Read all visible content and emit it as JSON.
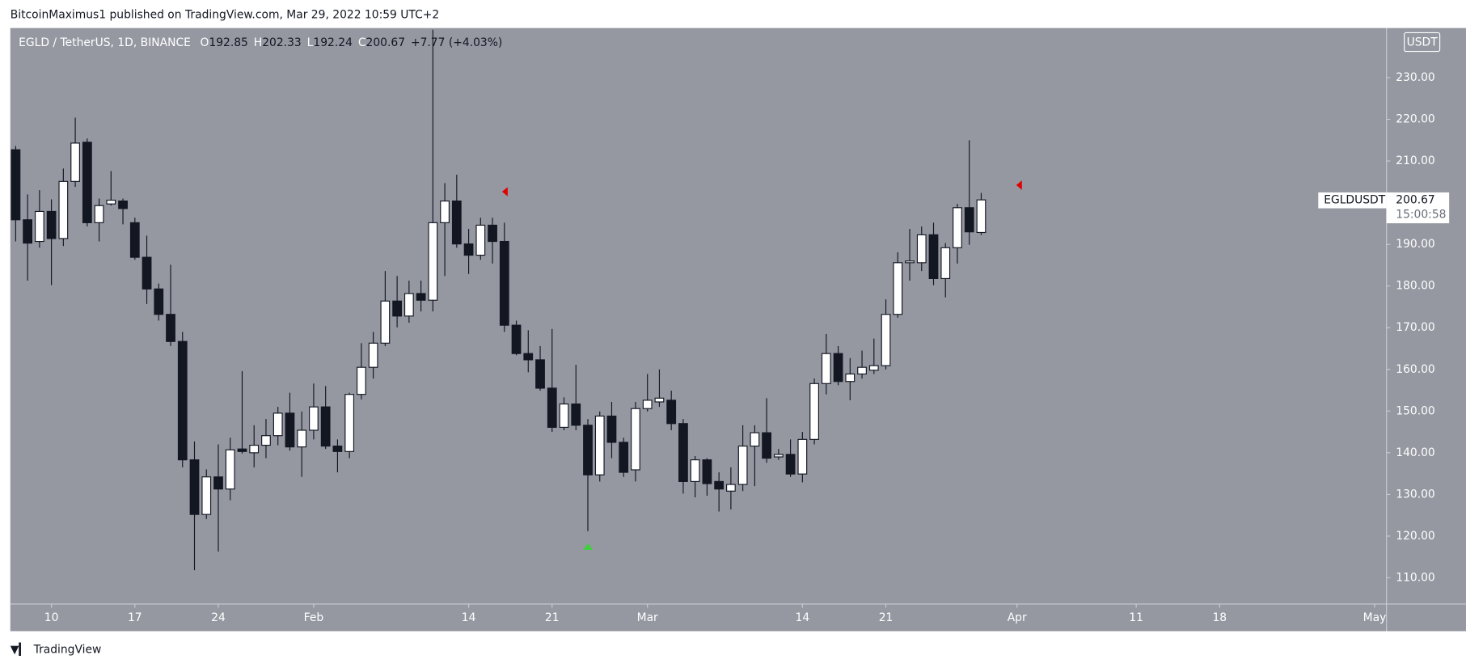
{
  "header": {
    "published": "BitcoinMaximus1 published on TradingView.com, Mar 29, 2022 10:59 UTC+2"
  },
  "footer": {
    "brand": "TradingView"
  },
  "chart_data": {
    "type": "candlestick",
    "title": "EGLD / TetherUS, 1D, BINANCE",
    "ohlc_labels": [
      "O",
      "H",
      "L",
      "C"
    ],
    "change": "+7.77 (+4.03%)",
    "unit": "USDT",
    "ticker": "EGLDUSDT",
    "countdown": "15:00:58",
    "background": "#9598a1",
    "up_color": "#ffffff",
    "down_color": "#131722",
    "wick_color": "#131722",
    "x": [
      7,
      8,
      9,
      10,
      11,
      12,
      13,
      14,
      15,
      16,
      17,
      18,
      19,
      20,
      21,
      22,
      23,
      24,
      25,
      26,
      27,
      28,
      29,
      30,
      31,
      32,
      33,
      34,
      35,
      36,
      37,
      38,
      39,
      40,
      41,
      42,
      43,
      44,
      45,
      46,
      47,
      48,
      49,
      50,
      51,
      52,
      53,
      54,
      55,
      56,
      57,
      58,
      59,
      60,
      61,
      62,
      63,
      64,
      65,
      66,
      67,
      68,
      69,
      70,
      71,
      72,
      73,
      74,
      75,
      76,
      77,
      78,
      79,
      80,
      81,
      82,
      83,
      84,
      85,
      86,
      87,
      88
    ],
    "open": [
      212.7,
      195.9,
      190.7,
      197.9,
      191.4,
      205.1,
      214.5,
      195.2,
      199.7,
      200.4,
      195.2,
      186.9,
      179.3,
      173.2,
      166.7,
      138.3,
      125.2,
      134.2,
      131.3,
      140.9,
      140.0,
      141.8,
      144.1,
      149.5,
      141.4,
      145.4,
      151.0,
      141.6,
      140.3,
      154.0,
      160.5,
      166.3,
      176.4,
      172.8,
      178.2,
      176.6,
      195.2,
      200.4,
      190.1,
      187.4,
      194.6,
      190.7,
      170.6,
      163.8,
      162.3,
      155.5,
      146.1,
      151.7,
      146.6,
      134.7,
      148.8,
      142.5,
      135.9,
      150.6,
      152.2,
      152.6,
      147.0,
      133.1,
      138.3,
      133.1,
      130.8,
      132.4,
      141.6,
      144.8,
      139.0,
      139.6,
      134.9,
      143.2,
      156.6,
      163.8,
      157.1,
      158.9,
      159.8,
      160.9,
      173.2,
      185.6,
      185.6,
      192.3,
      181.8,
      189.2,
      198.8,
      192.85
    ],
    "high": [
      213.6,
      202,
      203,
      200.8,
      208.2,
      220.4,
      215.4,
      201,
      207.6,
      201,
      196.4,
      192.1,
      180.6,
      185.1,
      169,
      142.7,
      136,
      142,
      143.6,
      159.6,
      146.6,
      148.1,
      151,
      154.4,
      149.9,
      156.6,
      156,
      143.2,
      154.4,
      166.3,
      169,
      183.6,
      182.4,
      181.3,
      181.3,
      241.5,
      204.7,
      206.7,
      193.7,
      196.4,
      196.4,
      195.2,
      171.7,
      169.4,
      165.6,
      169.7,
      153.3,
      161.1,
      148.1,
      149.9,
      152.2,
      143.6,
      152.2,
      158.9,
      160,
      154.9,
      148.1,
      139.2,
      138.7,
      135.3,
      136.5,
      146.6,
      146.6,
      153.1,
      140.9,
      143.2,
      145,
      157.8,
      168.5,
      165.6,
      162.7,
      164.5,
      167.4,
      176.8,
      188.1,
      193.7,
      194.3,
      195.2,
      190.3,
      199.7,
      215,
      202.33
    ],
    "low": [
      190.7,
      181.3,
      189.2,
      180.2,
      189.6,
      203.8,
      194.3,
      190.7,
      199.3,
      194.8,
      186.3,
      175.7,
      171.7,
      165.6,
      136.5,
      111.8,
      124.1,
      116.3,
      128.6,
      139.8,
      136.5,
      138.7,
      141.8,
      140.5,
      134.2,
      143.2,
      140.9,
      135.3,
      138.7,
      152.8,
      157.8,
      165.6,
      170.1,
      171.2,
      173.9,
      173.9,
      182.4,
      189.2,
      182.9,
      186.3,
      185.4,
      169.0,
      163.4,
      159.3,
      154.9,
      145.0,
      145.4,
      145.4,
      121.2,
      133.1,
      138.7,
      134.2,
      133.1,
      149.9,
      151,
      145.4,
      130.2,
      129.3,
      129.7,
      125.9,
      126.4,
      130.8,
      132.0,
      137.6,
      138.3,
      134.2,
      132.9,
      142.0,
      154.0,
      156.2,
      152.6,
      157.8,
      158.9,
      160.0,
      172.4,
      181.3,
      183.6,
      180.2,
      177.3,
      185.4,
      189.9,
      192.24
    ],
    "close": [
      195.9,
      190.3,
      197.9,
      191.4,
      205.1,
      214.3,
      195.2,
      199.3,
      200.6,
      198.6,
      186.9,
      179.3,
      173.2,
      166.7,
      138.3,
      125.2,
      134.2,
      131.3,
      140.7,
      140.3,
      141.8,
      144.1,
      149.5,
      141.4,
      145.4,
      151.0,
      141.6,
      140.3,
      154.0,
      160.5,
      166.3,
      176.4,
      172.8,
      178.2,
      176.6,
      195.2,
      200.4,
      190.1,
      187.4,
      194.6,
      190.7,
      170.6,
      163.8,
      162.3,
      155.5,
      146.1,
      151.7,
      146.6,
      134.7,
      148.8,
      142.5,
      135.3,
      150.6,
      152.6,
      153.1,
      147.0,
      133.1,
      138.3,
      132.6,
      131.3,
      132.4,
      141.6,
      144.8,
      138.7,
      139.6,
      134.9,
      143.2,
      156.6,
      163.8,
      157.1,
      158.9,
      160.5,
      160.9,
      173.2,
      185.6,
      186.0,
      192.3,
      181.8,
      189.2,
      198.8,
      193.0,
      200.67
    ],
    "xlim": [
      6.55,
      122
    ],
    "xticks": [
      {
        "value": 10,
        "label": "10"
      },
      {
        "value": 17,
        "label": "17"
      },
      {
        "value": 24,
        "label": "24"
      },
      {
        "value": 32,
        "label": "Feb"
      },
      {
        "value": 45,
        "label": "14"
      },
      {
        "value": 52,
        "label": "21"
      },
      {
        "value": 60,
        "label": "Mar"
      },
      {
        "value": 73,
        "label": "14"
      },
      {
        "value": 80,
        "label": "21"
      },
      {
        "value": 91,
        "label": "Apr"
      },
      {
        "value": 101,
        "label": "11"
      },
      {
        "value": 108,
        "label": "18"
      },
      {
        "value": 121,
        "label": "May"
      }
    ],
    "ylim": [
      103.7,
      241.9
    ],
    "yticks": [
      {
        "value": 110,
        "label": "110.00"
      },
      {
        "value": 120,
        "label": "120.00"
      },
      {
        "value": 130,
        "label": "130.00"
      },
      {
        "value": 140,
        "label": "140.00"
      },
      {
        "value": 150,
        "label": "150.00"
      },
      {
        "value": 160,
        "label": "160.00"
      },
      {
        "value": 170,
        "label": "170.00"
      },
      {
        "value": 180,
        "label": "180.00"
      },
      {
        "value": 190,
        "label": "190.00"
      },
      {
        "value": 200,
        "label": "200.00"
      },
      {
        "value": 210,
        "label": "210.00"
      },
      {
        "value": 220,
        "label": "220.00"
      },
      {
        "value": 230,
        "label": "230.00"
      }
    ]
  }
}
